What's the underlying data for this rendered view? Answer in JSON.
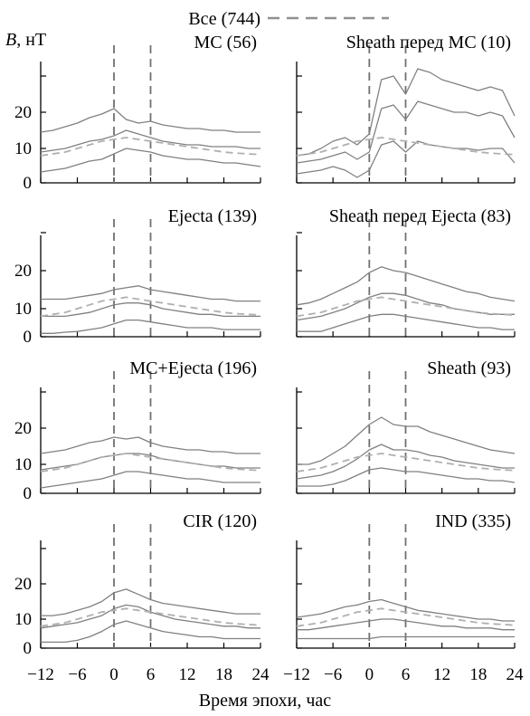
{
  "figure": {
    "legend_label": "Все (744)",
    "ylabel_var": "B",
    "ylabel_unit": ", нТ",
    "xlabel": "Время эпохи, час",
    "colors": {
      "quantile": "#808080",
      "all_mean": "#b0b0b0",
      "epoch_marker": "#707070",
      "axis": "#000000"
    }
  },
  "chart_data": [
    {
      "type": "line",
      "title": "MC (56)",
      "x": [
        -12,
        -10,
        -8,
        -6,
        -4,
        -2,
        0,
        2,
        4,
        6,
        8,
        10,
        12,
        14,
        16,
        18,
        20,
        22,
        24
      ],
      "xlim": [
        -12,
        24
      ],
      "ylim": [
        0,
        30
      ],
      "xticks": [
        -12,
        -6,
        0,
        6,
        12,
        18,
        24
      ],
      "yticks": [
        0,
        10,
        20
      ],
      "epoch_markers": [
        0,
        6
      ],
      "series": [
        {
          "role": "upper",
          "values": [
            14.5,
            15,
            16,
            17,
            18.5,
            19.5,
            21,
            18,
            17,
            17.5,
            16.5,
            16,
            15.5,
            15.5,
            15,
            15,
            14.5,
            14.5,
            14.5
          ]
        },
        {
          "role": "median",
          "values": [
            9,
            9.5,
            10,
            11,
            12,
            12.5,
            13.5,
            15,
            14,
            13,
            12,
            11.5,
            11,
            11,
            10.5,
            10.5,
            10.5,
            10,
            10
          ]
        },
        {
          "role": "lower",
          "values": [
            3.5,
            4,
            4.5,
            5.5,
            6.5,
            7,
            8.5,
            10,
            9.5,
            9,
            8,
            7.5,
            7,
            7,
            6.5,
            6,
            6,
            5.5,
            5
          ]
        },
        {
          "role": "all_mean",
          "values": [
            8,
            8.5,
            9,
            10,
            11,
            12,
            12.5,
            13,
            12.5,
            12,
            11.5,
            11,
            10.5,
            10,
            9.5,
            9,
            8.7,
            8.5,
            8.3
          ]
        }
      ]
    },
    {
      "type": "line",
      "title": "Sheath перед MC (10)",
      "x": [
        -12,
        -10,
        -8,
        -6,
        -4,
        -2,
        0,
        2,
        4,
        6,
        8,
        10,
        12,
        14,
        16,
        18,
        20,
        22,
        24
      ],
      "xlim": [
        -12,
        24
      ],
      "ylim": [
        0,
        30
      ],
      "xticks": [
        -12,
        -6,
        0,
        6,
        12,
        18,
        24
      ],
      "yticks": [
        0,
        10,
        20
      ],
      "epoch_markers": [
        0,
        6
      ],
      "series": [
        {
          "role": "upper",
          "values": [
            8,
            8.5,
            10,
            12,
            13,
            11,
            14,
            29,
            30,
            25,
            32,
            31,
            29,
            28,
            27,
            26,
            27,
            26,
            19
          ]
        },
        {
          "role": "median",
          "values": [
            6,
            6.5,
            7,
            8,
            9,
            7,
            9,
            21,
            22,
            18,
            23,
            22,
            21,
            20,
            20,
            19,
            20,
            19,
            13
          ]
        },
        {
          "role": "lower",
          "values": [
            3,
            3.5,
            4,
            5,
            4,
            2,
            4,
            11,
            12,
            9,
            12,
            11,
            10.5,
            10,
            10,
            9.5,
            10,
            10,
            6
          ]
        },
        {
          "role": "all_mean",
          "values": [
            8,
            8.5,
            9,
            10,
            11,
            12,
            12.5,
            13,
            12.5,
            12,
            11.5,
            11,
            10.5,
            10,
            9.5,
            9,
            8.7,
            8.5,
            8.3
          ]
        }
      ]
    },
    {
      "type": "line",
      "title": "Ejecta (139)",
      "x": [
        -12,
        -10,
        -8,
        -6,
        -4,
        -2,
        0,
        2,
        4,
        6,
        8,
        10,
        12,
        14,
        16,
        18,
        20,
        22,
        24
      ],
      "xlim": [
        -12,
        24
      ],
      "ylim": [
        0,
        30
      ],
      "xticks": [
        -12,
        -6,
        0,
        6,
        12,
        18,
        24
      ],
      "yticks": [
        0,
        10,
        20
      ],
      "epoch_markers": [
        0,
        6
      ],
      "series": [
        {
          "role": "upper",
          "values": [
            12.5,
            12.5,
            12.5,
            13,
            13.5,
            14,
            15,
            15.5,
            16,
            15,
            14.5,
            14,
            13.5,
            13,
            12.5,
            12.5,
            12,
            12,
            12
          ]
        },
        {
          "role": "median",
          "values": [
            8,
            8,
            8,
            8.5,
            9,
            10,
            11,
            11.5,
            11.5,
            11,
            10,
            9.5,
            9,
            8.5,
            8.5,
            8,
            8,
            8,
            8
          ]
        },
        {
          "role": "lower",
          "values": [
            3.5,
            3.5,
            3.8,
            4,
            4.5,
            5,
            6,
            7,
            7,
            6.5,
            6,
            5.5,
            5,
            5,
            5,
            4.5,
            4.5,
            4.5,
            4.5
          ]
        },
        {
          "role": "all_mean",
          "values": [
            8,
            8.5,
            9,
            10,
            11,
            12,
            12.5,
            13,
            12.5,
            12,
            11.5,
            11,
            10.5,
            10,
            9.5,
            9,
            8.7,
            8.5,
            8.3
          ]
        }
      ]
    },
    {
      "type": "line",
      "title": "Sheath перед Ejecta (83)",
      "x": [
        -12,
        -10,
        -8,
        -6,
        -4,
        -2,
        0,
        2,
        4,
        6,
        8,
        10,
        12,
        14,
        16,
        18,
        20,
        22,
        24
      ],
      "xlim": [
        -12,
        24
      ],
      "ylim": [
        0,
        30
      ],
      "xticks": [
        -12,
        -6,
        0,
        6,
        12,
        18,
        24
      ],
      "yticks": [
        0,
        10,
        20
      ],
      "epoch_markers": [
        0,
        6
      ],
      "series": [
        {
          "role": "upper",
          "values": [
            11,
            11.5,
            12.5,
            14,
            15.5,
            17,
            19.5,
            21,
            20,
            19.5,
            18.5,
            17.5,
            16.5,
            15.5,
            14.5,
            14,
            13,
            12.5,
            12
          ]
        },
        {
          "role": "median",
          "values": [
            7,
            7.5,
            8,
            9,
            10,
            11.5,
            13,
            14,
            14,
            13.5,
            12.5,
            11.5,
            11,
            10,
            9.5,
            9,
            8.5,
            8.5,
            8.5
          ]
        },
        {
          "role": "lower",
          "values": [
            4,
            4,
            4,
            5,
            6,
            7,
            8,
            8.5,
            8.5,
            8,
            7.5,
            7,
            6.5,
            6,
            5.5,
            5,
            5,
            4.5,
            4.5
          ]
        },
        {
          "role": "all_mean",
          "values": [
            8,
            8.5,
            9,
            10,
            11,
            12,
            12.5,
            13,
            12.5,
            12,
            11.5,
            11,
            10.5,
            10,
            9.5,
            9,
            8.7,
            8.5,
            8.3
          ]
        }
      ]
    },
    {
      "type": "line",
      "title": "MC+Ejecta (196)",
      "x": [
        -12,
        -10,
        -8,
        -6,
        -4,
        -2,
        0,
        2,
        4,
        6,
        8,
        10,
        12,
        14,
        16,
        18,
        20,
        22,
        24
      ],
      "xlim": [
        -12,
        24
      ],
      "ylim": [
        0,
        30
      ],
      "xticks": [
        -12,
        -6,
        0,
        6,
        12,
        18,
        24
      ],
      "yticks": [
        0,
        10,
        20
      ],
      "epoch_markers": [
        0,
        6
      ],
      "series": [
        {
          "role": "upper",
          "values": [
            13,
            13.5,
            14,
            15,
            16,
            16.5,
            17.5,
            17,
            17.5,
            16,
            15,
            14.5,
            14,
            14,
            13.5,
            13.5,
            13,
            13,
            13
          ]
        },
        {
          "role": "median",
          "values": [
            8.5,
            9,
            9.5,
            10,
            11,
            12,
            12.5,
            13,
            13,
            12.5,
            11.5,
            11,
            10.5,
            10,
            9.5,
            9.5,
            9,
            9,
            9
          ]
        },
        {
          "role": "lower",
          "values": [
            3.5,
            4,
            4.5,
            5,
            5.5,
            6,
            7,
            8,
            8,
            7.5,
            7,
            6.5,
            6,
            6,
            5.5,
            5,
            5,
            5,
            5
          ]
        },
        {
          "role": "all_mean",
          "values": [
            8,
            8.5,
            9,
            10,
            11,
            12,
            12.5,
            13,
            12.5,
            12,
            11.5,
            11,
            10.5,
            10,
            9.5,
            9,
            8.7,
            8.5,
            8.3
          ]
        }
      ]
    },
    {
      "type": "line",
      "title": "Sheath (93)",
      "x": [
        -12,
        -10,
        -8,
        -6,
        -4,
        -2,
        0,
        2,
        4,
        6,
        8,
        10,
        12,
        14,
        16,
        18,
        20,
        22,
        24
      ],
      "xlim": [
        -12,
        24
      ],
      "ylim": [
        0,
        30
      ],
      "xticks": [
        -12,
        -6,
        0,
        6,
        12,
        18,
        24
      ],
      "yticks": [
        0,
        10,
        20
      ],
      "epoch_markers": [
        0,
        6
      ],
      "series": [
        {
          "role": "upper",
          "values": [
            10,
            10,
            11,
            13,
            15,
            18,
            21,
            23,
            21,
            20.5,
            20.5,
            19,
            18,
            17,
            16,
            15,
            14,
            13.5,
            13
          ]
        },
        {
          "role": "median",
          "values": [
            6,
            6.5,
            7,
            8,
            9.5,
            11.5,
            14,
            15.5,
            14,
            14,
            13.5,
            12.5,
            12,
            11,
            10.5,
            10,
            9.5,
            9,
            9
          ]
        },
        {
          "role": "lower",
          "values": [
            4,
            4,
            4,
            4.5,
            5.5,
            7,
            8.5,
            9,
            8.5,
            8,
            8,
            7.5,
            7,
            6.5,
            6,
            6,
            5.5,
            5.5,
            5
          ]
        },
        {
          "role": "all_mean",
          "values": [
            8,
            8.5,
            9,
            10,
            11,
            12,
            12.5,
            13,
            12.5,
            12,
            11.5,
            11,
            10.5,
            10,
            9.5,
            9,
            8.7,
            8.5,
            8.3
          ]
        }
      ]
    },
    {
      "type": "line",
      "title": "CIR (120)",
      "x": [
        -12,
        -10,
        -8,
        -6,
        -4,
        -2,
        0,
        2,
        4,
        6,
        8,
        10,
        12,
        14,
        16,
        18,
        20,
        22,
        24
      ],
      "xlim": [
        -12,
        24
      ],
      "ylim": [
        0,
        30
      ],
      "xticks": [
        -12,
        -6,
        0,
        6,
        12,
        18,
        24
      ],
      "yticks": [
        0,
        10,
        20
      ],
      "epoch_markers": [
        0,
        6
      ],
      "series": [
        {
          "role": "upper",
          "values": [
            11,
            11,
            11.5,
            12.5,
            13.5,
            15,
            17.5,
            18.5,
            17,
            15.5,
            14.5,
            14,
            13.5,
            13,
            12.5,
            12,
            11.5,
            11.5,
            11.5
          ]
        },
        {
          "role": "median",
          "values": [
            7.5,
            8,
            8.5,
            9,
            10,
            11,
            13,
            14,
            13.5,
            12,
            11,
            10,
            9.5,
            9,
            8.5,
            8,
            8,
            7.5,
            7.5
          ]
        },
        {
          "role": "lower",
          "values": [
            3.5,
            3.5,
            3.5,
            4,
            5,
            6.5,
            8.5,
            9.5,
            8.5,
            7.5,
            6.5,
            6,
            5.5,
            5,
            5,
            4.5,
            4.5,
            4.5,
            4.5
          ]
        },
        {
          "role": "all_mean",
          "values": [
            8,
            8.5,
            9,
            10,
            11,
            12,
            12.5,
            13,
            12.5,
            12,
            11.5,
            11,
            10.5,
            10,
            9.5,
            9,
            8.7,
            8.5,
            8.3
          ]
        }
      ]
    },
    {
      "type": "line",
      "title": "IND (335)",
      "x": [
        -12,
        -10,
        -8,
        -6,
        -4,
        -2,
        0,
        2,
        4,
        6,
        8,
        10,
        12,
        14,
        16,
        18,
        20,
        22,
        24
      ],
      "xlim": [
        -12,
        24
      ],
      "ylim": [
        0,
        30
      ],
      "xticks": [
        -12,
        -6,
        0,
        6,
        12,
        18,
        24
      ],
      "yticks": [
        0,
        10,
        20
      ],
      "epoch_markers": [
        0,
        6
      ],
      "series": [
        {
          "role": "upper",
          "values": [
            10.5,
            11,
            11.5,
            12.5,
            13.5,
            14,
            15,
            15.5,
            14.5,
            13.5,
            12.5,
            12,
            11.5,
            11,
            10.5,
            10,
            10,
            9.5,
            9.5
          ]
        },
        {
          "role": "median",
          "values": [
            7,
            7,
            7.5,
            8,
            8.5,
            9,
            9.5,
            10,
            10,
            9.5,
            9,
            8.5,
            8,
            8,
            7.5,
            7.5,
            7.5,
            7,
            7
          ]
        },
        {
          "role": "lower",
          "values": [
            4.5,
            4.5,
            4.5,
            4.5,
            4.5,
            4.5,
            4.5,
            5,
            5,
            5,
            5,
            5,
            5,
            5,
            5,
            5,
            5,
            5,
            5
          ]
        },
        {
          "role": "all_mean",
          "values": [
            8,
            8.5,
            9,
            10,
            11,
            12,
            12.5,
            13,
            12.5,
            12,
            11.5,
            11,
            10.5,
            10,
            9.5,
            9,
            8.7,
            8.5,
            8.3
          ]
        }
      ]
    }
  ]
}
